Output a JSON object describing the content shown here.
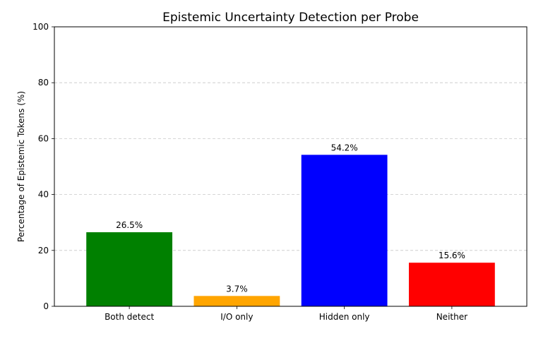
{
  "chart_data": {
    "type": "bar",
    "title": "Epistemic Uncertainty Detection per Probe",
    "xlabel": "",
    "ylabel": "Percentage of Epistemic Tokens (%)",
    "categories": [
      "Both detect",
      "I/O only",
      "Hidden only",
      "Neither"
    ],
    "values": [
      26.5,
      3.7,
      54.2,
      15.6
    ],
    "value_labels": [
      "26.5%",
      "3.7%",
      "54.2%",
      "15.6%"
    ],
    "colors": [
      "#008000",
      "#ffa500",
      "#0000ff",
      "#ff0000"
    ],
    "ylim": [
      0,
      100
    ],
    "yticks": [
      0,
      20,
      40,
      60,
      80,
      100
    ],
    "grid": "y-dashed"
  }
}
